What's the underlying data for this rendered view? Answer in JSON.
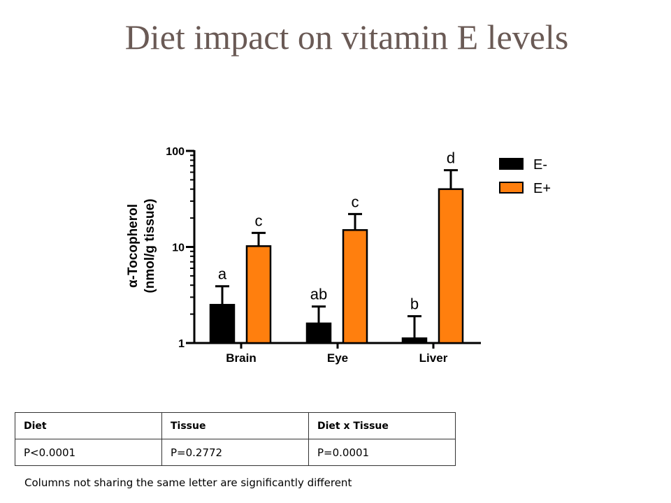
{
  "title": "Diet impact on vitamin E levels",
  "chart_data": {
    "type": "bar",
    "categories": [
      "Brain",
      "Eye",
      "Liver"
    ],
    "ylabel_line1": "α-Tocopherol",
    "ylabel_line2": "(nmol/g tissue)",
    "yscale": "log",
    "ylim": [
      1,
      100
    ],
    "yticks": [
      "1",
      "10",
      "100"
    ],
    "legend_position": "top-right",
    "series": [
      {
        "name": "E-",
        "color": "#000000",
        "values": [
          2.5,
          1.6,
          1.12
        ],
        "errors_upper": [
          3.9,
          2.4,
          1.9
        ],
        "letters": [
          "a",
          "ab",
          "b"
        ]
      },
      {
        "name": "E+",
        "color": "#ff7f0e",
        "values": [
          10.2,
          15.0,
          40.0
        ],
        "errors_upper": [
          14.0,
          22.0,
          63.0
        ],
        "letters": [
          "c",
          "c",
          "d"
        ]
      }
    ]
  },
  "stats_table": {
    "headers": [
      "Diet",
      "Tissue",
      "Diet x Tissue"
    ],
    "values": [
      "P<0.0001",
      "P=0.2772",
      "P=0.0001"
    ]
  },
  "footnote": "Columns not sharing the same letter are significantly different"
}
